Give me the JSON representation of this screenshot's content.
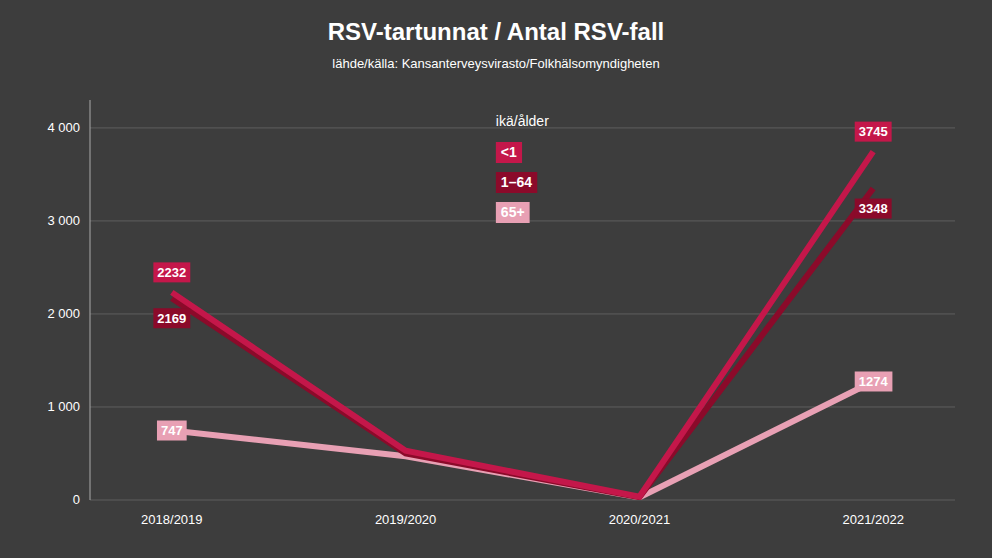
{
  "chart_data": {
    "type": "line",
    "title": "RSV-tartunnat / Antal RSV-fall",
    "subtitle": "lähde/källa: Kansanterveysvirasto/Folkhälsomyndigheten",
    "legend_title": "ikä/ålder",
    "categories": [
      "2018/2019",
      "2019/2020",
      "2020/2021",
      "2021/2022"
    ],
    "series": [
      {
        "name": "<1",
        "color": "#c4174a",
        "values": [
          2232,
          530,
          35,
          3745
        ],
        "value_labels": [
          "2232",
          null,
          null,
          "3745"
        ]
      },
      {
        "name": "1–64",
        "color": "#8b0a2a",
        "values": [
          2169,
          500,
          30,
          3348
        ],
        "value_labels": [
          "2169",
          null,
          null,
          "3348"
        ]
      },
      {
        "name": "65+",
        "color": "#e8a0b4",
        "values": [
          747,
          470,
          28,
          1274
        ],
        "value_labels": [
          "747",
          null,
          null,
          "1274"
        ]
      }
    ],
    "ylim": [
      0,
      4300
    ],
    "yticks": [
      0,
      {
        "value": 1000,
        "label": "1 000"
      },
      {
        "value": 2000,
        "label": "2 000"
      },
      {
        "value": 3000,
        "label": "3 000"
      },
      {
        "value": 4000,
        "label": "4 000"
      }
    ],
    "grid": true,
    "legend": "upper center",
    "data_labels": true
  }
}
